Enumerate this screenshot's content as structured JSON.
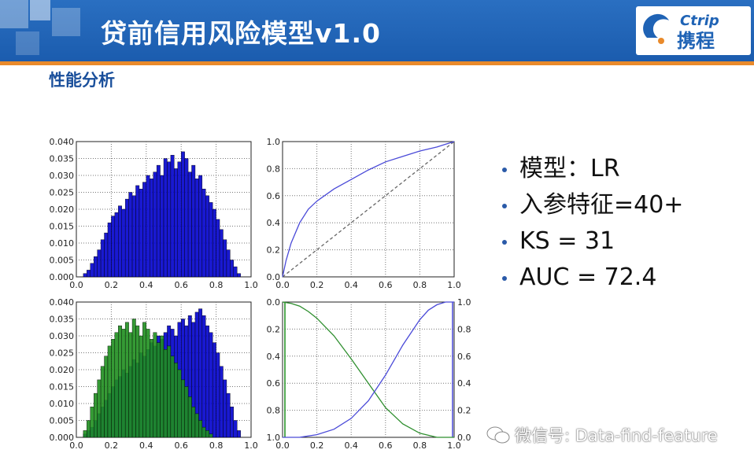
{
  "header": {
    "title": "贷前信用风险模型v1.0",
    "logo_text_en": "Ctrip",
    "logo_text_cn": "携程"
  },
  "subtitle": "性能分析",
  "bullets": [
    "模型：LR",
    "入参特征=40+",
    "KS = 31",
    "AUC = 72.4"
  ],
  "watermark": "微信号: Data-find-feature",
  "colors": {
    "header": "#1f63b5",
    "accent": "#e98a2b",
    "blue_series": "#0000cc",
    "green_series": "#1f8f1f"
  },
  "chart_data": [
    {
      "type": "bar",
      "subtype": "histogram",
      "panel": "top-left",
      "bin_starts": [
        0.04,
        0.06,
        0.08,
        0.1,
        0.12,
        0.14,
        0.16,
        0.18,
        0.2,
        0.22,
        0.24,
        0.26,
        0.28,
        0.3,
        0.32,
        0.34,
        0.36,
        0.38,
        0.4,
        0.42,
        0.44,
        0.46,
        0.48,
        0.5,
        0.52,
        0.54,
        0.56,
        0.58,
        0.6,
        0.62,
        0.64,
        0.66,
        0.68,
        0.7,
        0.72,
        0.74,
        0.76,
        0.78,
        0.8,
        0.82,
        0.84,
        0.86,
        0.88,
        0.9,
        0.92
      ],
      "bin_width": 0.02,
      "values": [
        0.001,
        0.002,
        0.004,
        0.006,
        0.008,
        0.011,
        0.013,
        0.016,
        0.018,
        0.019,
        0.021,
        0.02,
        0.023,
        0.025,
        0.024,
        0.027,
        0.026,
        0.028,
        0.03,
        0.029,
        0.031,
        0.033,
        0.03,
        0.035,
        0.034,
        0.036,
        0.032,
        0.034,
        0.037,
        0.035,
        0.031,
        0.033,
        0.029,
        0.03,
        0.026,
        0.024,
        0.022,
        0.02,
        0.017,
        0.014,
        0.011,
        0.008,
        0.005,
        0.003,
        0.001
      ],
      "xlim": [
        0.0,
        1.0
      ],
      "ylim": [
        0.0,
        0.04
      ],
      "xticks": [
        "0.0",
        "0.2",
        "0.4",
        "0.6",
        "0.8",
        "1.0"
      ],
      "yticks": [
        "0.000",
        "0.005",
        "0.010",
        "0.015",
        "0.020",
        "0.025",
        "0.030",
        "0.035",
        "0.040"
      ],
      "grid": true
    },
    {
      "type": "line",
      "panel": "top-right",
      "series": [
        {
          "x": [
            0.0,
            0.02,
            0.05,
            0.1,
            0.15,
            0.2,
            0.3,
            0.4,
            0.5,
            0.6,
            0.7,
            0.8,
            0.9,
            0.95,
            1.0
          ],
          "y": [
            0.0,
            0.12,
            0.25,
            0.4,
            0.5,
            0.56,
            0.65,
            0.72,
            0.79,
            0.85,
            0.89,
            0.93,
            0.96,
            0.98,
            1.0
          ]
        },
        {
          "x": [
            0.0,
            1.0
          ],
          "y": [
            0.0,
            1.0
          ],
          "style": "dashed"
        }
      ],
      "xlim": [
        0.0,
        1.0
      ],
      "ylim": [
        0.0,
        1.0
      ],
      "xticks": [
        "0.0",
        "0.2",
        "0.4",
        "0.6",
        "0.8",
        "1.0"
      ],
      "yticks": [
        "0.0",
        "0.2",
        "0.4",
        "0.6",
        "0.8",
        "1.0"
      ],
      "grid": true
    },
    {
      "type": "bar",
      "subtype": "histogram-overlay",
      "panel": "bottom-left",
      "bin_starts": [
        0.04,
        0.06,
        0.08,
        0.1,
        0.12,
        0.14,
        0.16,
        0.18,
        0.2,
        0.22,
        0.24,
        0.26,
        0.28,
        0.3,
        0.32,
        0.34,
        0.36,
        0.38,
        0.4,
        0.42,
        0.44,
        0.46,
        0.48,
        0.5,
        0.52,
        0.54,
        0.56,
        0.58,
        0.6,
        0.62,
        0.64,
        0.66,
        0.68,
        0.7,
        0.72,
        0.74,
        0.76,
        0.78,
        0.8,
        0.82,
        0.84,
        0.86,
        0.88,
        0.9,
        0.92
      ],
      "bin_width": 0.02,
      "series": [
        {
          "color": "#0000cc",
          "values": [
            0.001,
            0.002,
            0.003,
            0.005,
            0.007,
            0.009,
            0.011,
            0.013,
            0.015,
            0.017,
            0.018,
            0.02,
            0.019,
            0.021,
            0.023,
            0.022,
            0.025,
            0.024,
            0.026,
            0.028,
            0.027,
            0.03,
            0.029,
            0.031,
            0.033,
            0.032,
            0.03,
            0.034,
            0.035,
            0.033,
            0.036,
            0.034,
            0.037,
            0.038,
            0.036,
            0.033,
            0.031,
            0.028,
            0.025,
            0.021,
            0.017,
            0.013,
            0.009,
            0.005,
            0.002
          ]
        },
        {
          "color": "#1f8f1f",
          "values": [
            0.002,
            0.005,
            0.009,
            0.013,
            0.017,
            0.021,
            0.024,
            0.027,
            0.029,
            0.031,
            0.033,
            0.032,
            0.034,
            0.031,
            0.035,
            0.033,
            0.03,
            0.034,
            0.032,
            0.029,
            0.031,
            0.028,
            0.03,
            0.026,
            0.027,
            0.024,
            0.022,
            0.02,
            0.017,
            0.015,
            0.012,
            0.009,
            0.007,
            0.005,
            0.003,
            0.002,
            0.001,
            0.0,
            0.0,
            0.0,
            0.0,
            0.0,
            0.0,
            0.0,
            0.0
          ]
        }
      ],
      "xlim": [
        0.0,
        1.0
      ],
      "ylim": [
        0.0,
        0.04
      ],
      "xticks": [
        "0.0",
        "0.2",
        "0.4",
        "0.6",
        "0.8",
        "1.0"
      ],
      "yticks": [
        "0.000",
        "0.005",
        "0.010",
        "0.015",
        "0.020",
        "0.025",
        "0.030",
        "0.035",
        "0.040"
      ],
      "grid": true
    },
    {
      "type": "line",
      "panel": "bottom-right",
      "series": [
        {
          "color": "#1f8f1f",
          "axis": "left-inverted",
          "x": [
            0.0,
            0.05,
            0.1,
            0.15,
            0.2,
            0.3,
            0.4,
            0.5,
            0.6,
            0.7,
            0.8,
            0.9,
            1.0
          ],
          "y": [
            0.0,
            0.01,
            0.03,
            0.07,
            0.12,
            0.25,
            0.42,
            0.6,
            0.78,
            0.9,
            0.97,
            1.0,
            1.0
          ]
        },
        {
          "color": "#0000cc",
          "axis": "right",
          "x": [
            0.0,
            0.1,
            0.2,
            0.3,
            0.4,
            0.5,
            0.6,
            0.7,
            0.8,
            0.85,
            0.9,
            0.95,
            1.0
          ],
          "y": [
            0.0,
            0.0,
            0.02,
            0.06,
            0.14,
            0.27,
            0.46,
            0.68,
            0.87,
            0.94,
            0.98,
            1.0,
            1.0
          ]
        }
      ],
      "xlim": [
        0.0,
        1.0
      ],
      "xticks": [
        "0.0",
        "0.2",
        "0.4",
        "0.6",
        "0.8",
        "1.0"
      ],
      "yticks_left": [
        "0.0",
        "0.2",
        "0.4",
        "0.6",
        "0.8",
        "1.0"
      ],
      "yticks_right": [
        "0.0",
        "0.2",
        "0.4",
        "0.6",
        "0.8",
        "1.0"
      ],
      "grid": true
    }
  ]
}
